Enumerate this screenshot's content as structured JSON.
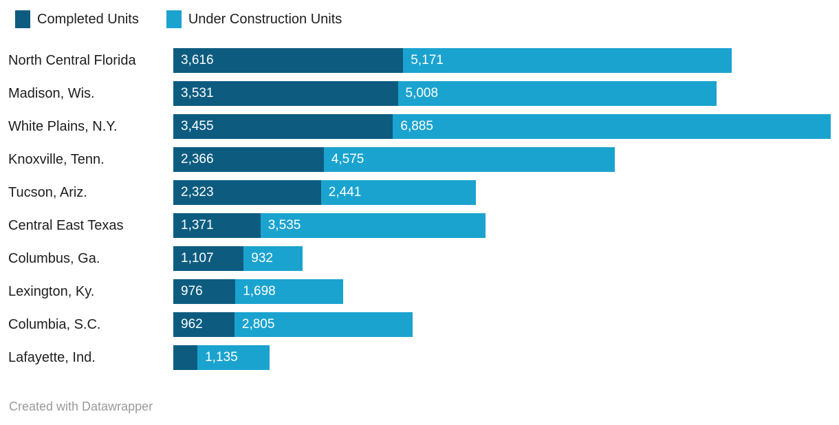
{
  "legend": {
    "items": [
      {
        "label": "Completed Units",
        "color": "#0d5c80"
      },
      {
        "label": "Under Construction Units",
        "color": "#1ba3cf"
      }
    ]
  },
  "footer": {
    "attribution": "Created with Datawrapper"
  },
  "chart_data": {
    "type": "bar",
    "orientation": "horizontal",
    "stacked": true,
    "title": "",
    "legend_position": "top",
    "grid": false,
    "axis_labels_visible": false,
    "xlim": [
      0,
      10340
    ],
    "categories": [
      "North Central Florida",
      "Madison, Wis.",
      "White Plains, N.Y.",
      "Knoxville, Tenn.",
      "Tucson, Ariz.",
      "Central East Texas",
      "Columbus, Ga.",
      "Lexington, Ky.",
      "Columbia, S.C.",
      "Lafayette, Ind."
    ],
    "series": [
      {
        "name": "Completed Units",
        "color": "#0d5c80",
        "values": [
          3616,
          3531,
          3455,
          2366,
          2323,
          1371,
          1107,
          976,
          962,
          380
        ],
        "labels": [
          "3,616",
          "3,531",
          "3,455",
          "2,366",
          "2,323",
          "1,371",
          "1,107",
          "976",
          "962",
          ""
        ]
      },
      {
        "name": "Under Construction Units",
        "color": "#1ba3cf",
        "values": [
          5171,
          5008,
          6885,
          4575,
          2441,
          3535,
          932,
          1698,
          2805,
          1135
        ],
        "labels": [
          "5,171",
          "5,008",
          "6,885",
          "4,575",
          "2,441",
          "3,535",
          "932",
          "1,698",
          "2,805",
          "1,135"
        ]
      }
    ]
  }
}
